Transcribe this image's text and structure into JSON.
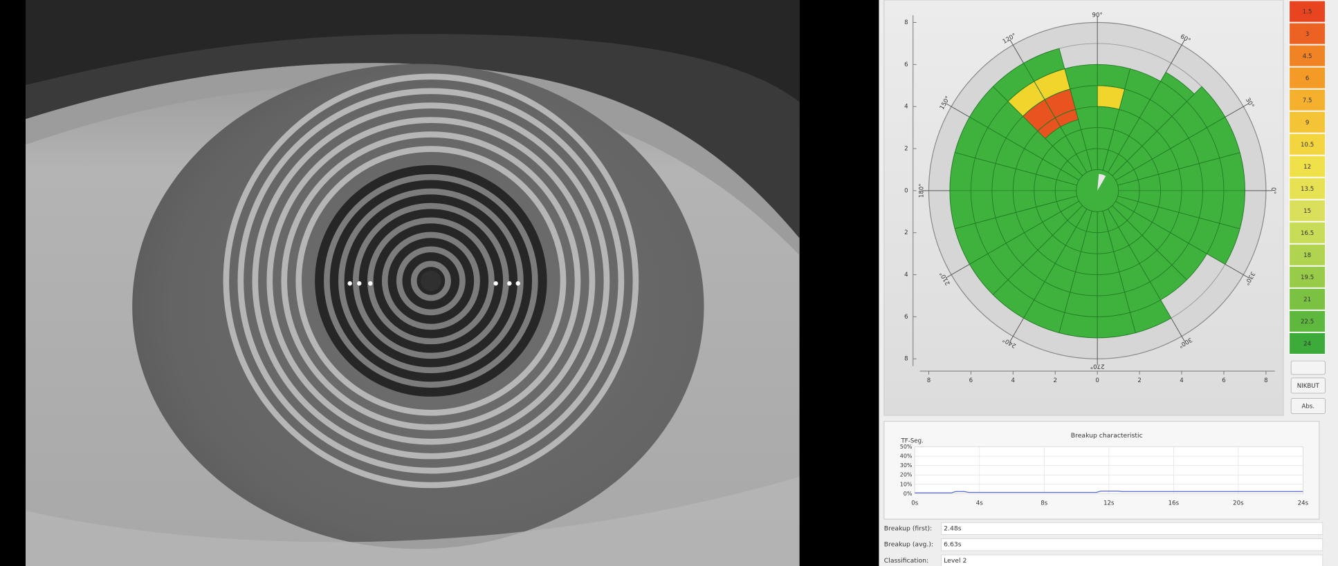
{
  "polar_map": {
    "y_axis_labels": [
      "8",
      "6",
      "4",
      "2",
      "0",
      "2",
      "4",
      "6",
      "8"
    ],
    "x_axis_labels": [
      "8",
      "6",
      "4",
      "2",
      "0",
      "2",
      "4",
      "6",
      "8"
    ],
    "angle_labels": [
      "90°",
      "60°",
      "30°",
      "0°",
      "330°",
      "300°",
      "270°",
      "240°",
      "210°",
      "180°",
      "150°",
      "120°"
    ]
  },
  "color_scale": {
    "labels": [
      "1.5",
      "3",
      "4.5",
      "6",
      "7.5",
      "9",
      "10.5",
      "12",
      "13.5",
      "15",
      "16.5",
      "18",
      "19.5",
      "21",
      "22.5",
      "24"
    ]
  },
  "buttons": [
    "NIKBUT",
    "Abs."
  ],
  "breakup_chart": {
    "title": "Breakup characteristic",
    "y_title": "TF-Seg.",
    "y_labels": [
      "50%",
      "40%",
      "30%",
      "20%",
      "10%",
      "0%"
    ],
    "x_labels": [
      "0s",
      "4s",
      "8s",
      "12s",
      "16s",
      "20s",
      "24s"
    ]
  },
  "fields": [
    {
      "label": "Breakup (first):",
      "value": "2.48s"
    },
    {
      "label": "Breakup (avg.):",
      "value": "6.63s"
    },
    {
      "label": "Classification:",
      "value": "Level 2"
    }
  ]
}
